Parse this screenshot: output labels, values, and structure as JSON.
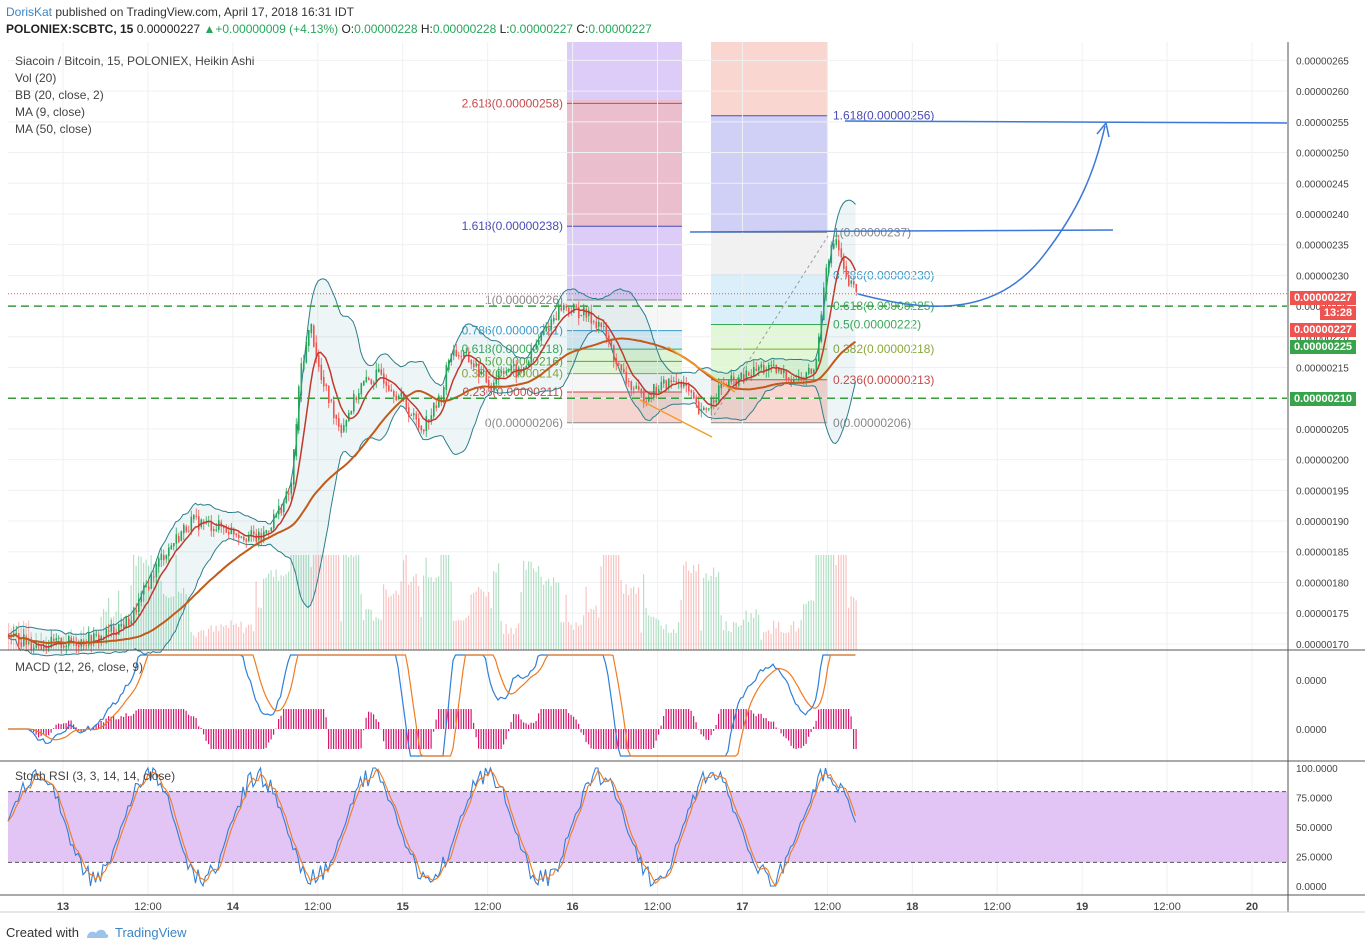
{
  "header": {
    "author": "DorisKat",
    "published": " published on TradingView.com, April 17, 2018 16:31 IDT",
    "symbol": "POLONIEX:SCBTC, 15",
    "last": "0.00000227",
    "change": "+0.00000009 (+4.13%)",
    "o_label": "O:",
    "o": "0.00000228",
    "h_label": "H:",
    "h": "0.00000228",
    "l_label": "L:",
    "l": "0.00000227",
    "c_label": "C:",
    "c": "0.00000227"
  },
  "legend": {
    "title": "Siacoin / Bitcoin, 15, POLONIEX, Heikin Ashi",
    "vol": "Vol (20)",
    "bb": "BB (20, close, 2)",
    "ma9": "MA (9, close)",
    "ma50": "MA (50, close)"
  },
  "macd_label": "MACD (12, 26, close, 9)",
  "stoch_label": "Stoch RSI (3, 3, 14, 14, close)",
  "footer": {
    "created": "Created with",
    "brand": "TradingView"
  },
  "colors": {
    "up": "#26a65b",
    "down": "#ef5350",
    "bb": "#2a7e8c",
    "ma9": "#c0392b",
    "ma50": "#c15a1a",
    "fib_blue": "#5b5bd6",
    "fib_red": "#d9534f",
    "green_dash": "#3a9b3a",
    "arrow": "#3b78d8",
    "stoch_band": "#e3c5f5",
    "tag_red": "#ef5350",
    "tag_green": "#37a34a"
  },
  "price_tags": [
    {
      "value": "0.00000227",
      "sub": "13:28",
      "color": "#ef5350"
    },
    {
      "value": "0.00000227",
      "color": "#ef5350"
    },
    {
      "value": "0.00000225",
      "color": "#37a34a"
    },
    {
      "value": "0.00000210",
      "color": "#37a34a"
    }
  ],
  "chart_data": {
    "type": "candlestick",
    "price_axis": [
      "0.00000265",
      "0.00000260",
      "0.00000255",
      "0.00000250",
      "0.00000245",
      "0.00000240",
      "0.00000235",
      "0.00000230",
      "0.00000225",
      "0.00000220",
      "0.00000215",
      "0.00000210",
      "0.00000205",
      "0.00000200",
      "0.00000195",
      "0.00000190",
      "0.00000185",
      "0.00000180",
      "0.00000175",
      "0.00000170"
    ],
    "price_range": [
      1.69e-06,
      2.68e-06
    ],
    "time_axis": [
      "13",
      "12:00",
      "14",
      "12:00",
      "15",
      "12:00",
      "16",
      "12:00",
      "17",
      "12:00",
      "18",
      "12:00",
      "19",
      "12:00",
      "20"
    ],
    "price_path": [
      [
        0,
        1.72e-06
      ],
      [
        30,
        1.7e-06
      ],
      [
        60,
        1.7e-06
      ],
      [
        100,
        1.71e-06
      ],
      [
        130,
        1.74e-06
      ],
      [
        160,
        1.84e-06
      ],
      [
        190,
        1.9e-06
      ],
      [
        220,
        1.89e-06
      ],
      [
        260,
        1.87e-06
      ],
      [
        290,
        1.95e-06
      ],
      [
        300,
        2.15e-06
      ],
      [
        310,
        2.22e-06
      ],
      [
        320,
        2.13e-06
      ],
      [
        340,
        2.05e-06
      ],
      [
        360,
        2.12e-06
      ],
      [
        380,
        2.14e-06
      ],
      [
        400,
        2.1e-06
      ],
      [
        420,
        2.05e-06
      ],
      [
        440,
        2.1e-06
      ],
      [
        450,
        2.18e-06
      ],
      [
        470,
        2.16e-06
      ],
      [
        490,
        2.12e-06
      ],
      [
        500,
        2.15e-06
      ],
      [
        520,
        2.14e-06
      ],
      [
        540,
        2.2e-06
      ],
      [
        560,
        2.25e-06
      ],
      [
        580,
        2.24e-06
      ],
      [
        600,
        2.22e-06
      ],
      [
        620,
        2.14e-06
      ],
      [
        640,
        2.1e-06
      ],
      [
        660,
        2.12e-06
      ],
      [
        680,
        2.13e-06
      ],
      [
        700,
        2.07e-06
      ],
      [
        720,
        2.12e-06
      ],
      [
        740,
        2.13e-06
      ],
      [
        760,
        2.15e-06
      ],
      [
        780,
        2.14e-06
      ],
      [
        800,
        2.13e-06
      ],
      [
        815,
        2.15e-06
      ],
      [
        825,
        2.32e-06
      ],
      [
        835,
        2.36e-06
      ],
      [
        845,
        2.29e-06
      ],
      [
        858,
        2.27e-06
      ]
    ],
    "fib_left": {
      "levels": [
        {
          "ratio": "2.618",
          "price": "0.00000258",
          "text": "2.618(0.00000258)"
        },
        {
          "ratio": "1.618",
          "price": "0.00000238",
          "text": "1.618(0.00000238)"
        },
        {
          "ratio": "1",
          "price": "0.00000226",
          "text": "1(0.00000226)"
        },
        {
          "ratio": "0.786",
          "price": "0.00000221",
          "text": "0.786(0.00000221)"
        },
        {
          "ratio": "0.618",
          "price": "0.00000218",
          "text": "0.618(0.00000218)"
        },
        {
          "ratio": "0.5",
          "price": "0.00000216",
          "text": "0.5(0.00000216)"
        },
        {
          "ratio": "0.382",
          "price": "0.00000214",
          "text": "0.382(0.00000214)"
        },
        {
          "ratio": "0.236",
          "price": "0.00000211",
          "text": "0.236(0.00000211)"
        },
        {
          "ratio": "0",
          "price": "0.00000206",
          "text": "0(0.00000206)"
        }
      ]
    },
    "fib_right": {
      "levels": [
        {
          "ratio": "1.618",
          "price": "0.00000256",
          "text": "1.618(0.00000256)"
        },
        {
          "ratio": "1",
          "price": "0.00000237",
          "text": "1(0.00000237)"
        },
        {
          "ratio": "0.786",
          "price": "0.00000230",
          "text": "0.786(0.00000230)"
        },
        {
          "ratio": "0.618",
          "price": "0.00000225",
          "text": "0.618(0.00000225)"
        },
        {
          "ratio": "0.5",
          "price": "0.00000222",
          "text": "0.5(0.00000222)"
        },
        {
          "ratio": "0.382",
          "price": "0.00000218",
          "text": "0.382(0.00000218)"
        },
        {
          "ratio": "0.236",
          "price": "0.00000213",
          "text": "0.236(0.00000213)"
        },
        {
          "ratio": "0",
          "price": "0.00000206",
          "text": "0(0.00000206)"
        }
      ]
    },
    "support_lines": [
      "0.00000225",
      "0.00000210"
    ],
    "macd": {
      "axis": [
        "0.0000",
        "0.0000"
      ]
    },
    "stoch": {
      "axis": [
        "100.0000",
        "75.0000",
        "50.0000",
        "25.0000",
        "0.0000"
      ],
      "band": [
        20,
        80
      ]
    }
  }
}
